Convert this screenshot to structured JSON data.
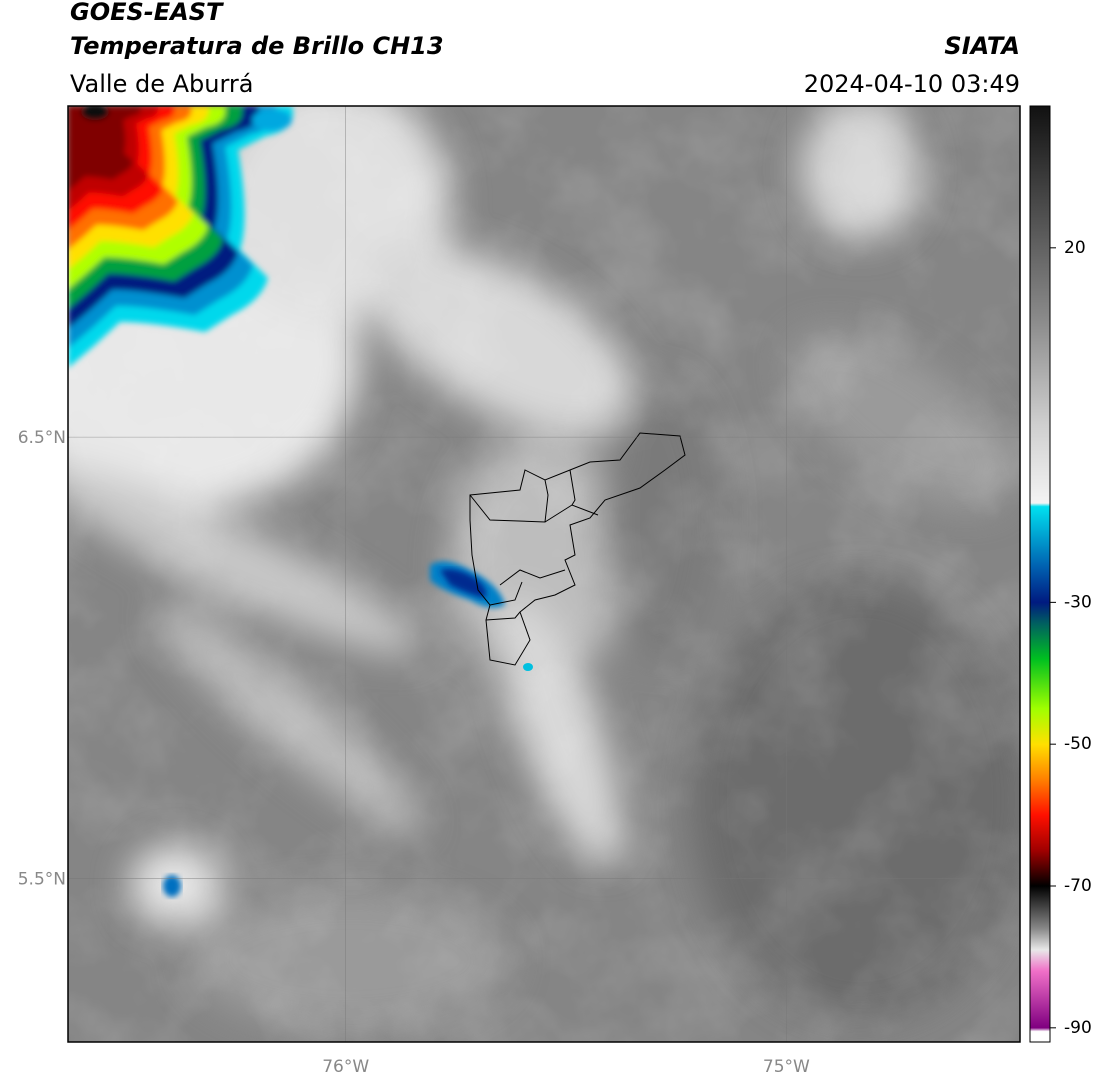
{
  "header": {
    "title": "GOES-EAST",
    "subtitle": "Temperatura de Brillo CH13",
    "region": "Valle de Aburrá",
    "source": "SIATA",
    "datetime": "2024-04-10 03:49"
  },
  "map": {
    "xlim": [
      -76.63,
      -74.47
    ],
    "ylim": [
      5.13,
      7.25
    ],
    "xticks": [
      {
        "value": -76,
        "label": "76°W"
      },
      {
        "value": -75,
        "label": "75°W"
      }
    ],
    "yticks": [
      {
        "value": 6.5,
        "label": "6.5°N"
      },
      {
        "value": 5.5,
        "label": "5.5°N"
      }
    ],
    "grid": true
  },
  "colorbar": {
    "clim": [
      -92,
      40
    ],
    "ticks": [
      20,
      -30,
      -50,
      -70,
      -90
    ],
    "colormap": [
      {
        "value": 40,
        "color": "#111111"
      },
      {
        "value": 30,
        "color": "#3a3a3a"
      },
      {
        "value": 10,
        "color": "#8a8a8a"
      },
      {
        "value": -5,
        "color": "#cfcfcf"
      },
      {
        "value": -16,
        "color": "#f4f4f4"
      },
      {
        "value": -16.5,
        "color": "#00e0f0"
      },
      {
        "value": -25,
        "color": "#0060b0"
      },
      {
        "value": -30,
        "color": "#001a80"
      },
      {
        "value": -33,
        "color": "#006060"
      },
      {
        "value": -38,
        "color": "#00c020"
      },
      {
        "value": -45,
        "color": "#a0ff00"
      },
      {
        "value": -50,
        "color": "#ffe000"
      },
      {
        "value": -55,
        "color": "#ff8000"
      },
      {
        "value": -60,
        "color": "#ff1000"
      },
      {
        "value": -65,
        "color": "#a00000"
      },
      {
        "value": -69,
        "color": "#200000"
      },
      {
        "value": -70,
        "color": "#000000"
      },
      {
        "value": -76,
        "color": "#888888"
      },
      {
        "value": -79,
        "color": "#e8e8e8"
      },
      {
        "value": -82,
        "color": "#f070c8"
      },
      {
        "value": -90,
        "color": "#800080"
      },
      {
        "value": -90.5,
        "color": "#ffffff"
      },
      {
        "value": -92,
        "color": "#ffffff"
      }
    ]
  }
}
